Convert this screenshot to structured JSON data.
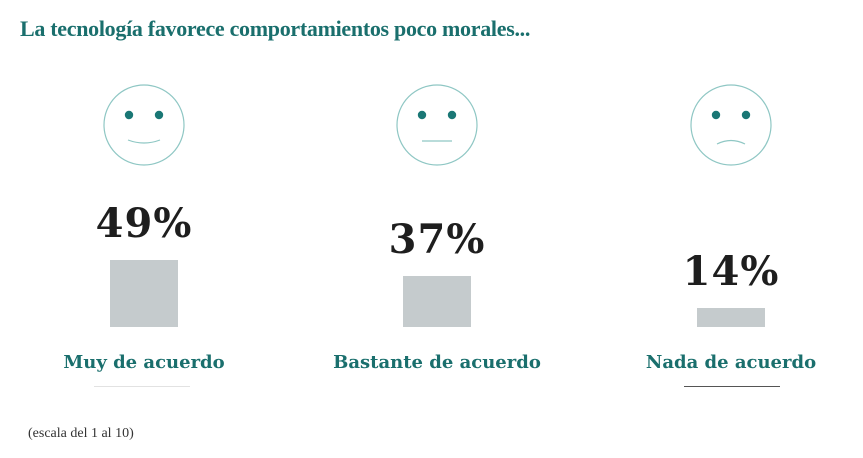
{
  "title": "La tecnología favorece comportamientos poco morales...",
  "footnote": "(escala del 1 al 10)",
  "colors": {
    "title": "#1a6f6d",
    "bar": "#c5cbcd",
    "face_outline": "#8fc7c4",
    "eyes": "#1a7775",
    "percent_text": "#1e1e1e",
    "category_text": "#1a6f6d"
  },
  "chart_data": {
    "type": "bar",
    "categories": [
      "Muy de acuerdo",
      "Bastante de acuerdo",
      "Nada de acuerdo"
    ],
    "values": [
      49,
      37,
      14
    ],
    "value_labels": [
      "49%",
      "37%",
      "14%"
    ],
    "icons": [
      "smiling-face-icon",
      "neutral-face-icon",
      "sad-face-icon"
    ],
    "title": "La tecnología favorece comportamientos poco morales...",
    "xlabel": "",
    "ylabel": "",
    "ylim": [
      0,
      49
    ],
    "grid": false,
    "legend": "none"
  }
}
